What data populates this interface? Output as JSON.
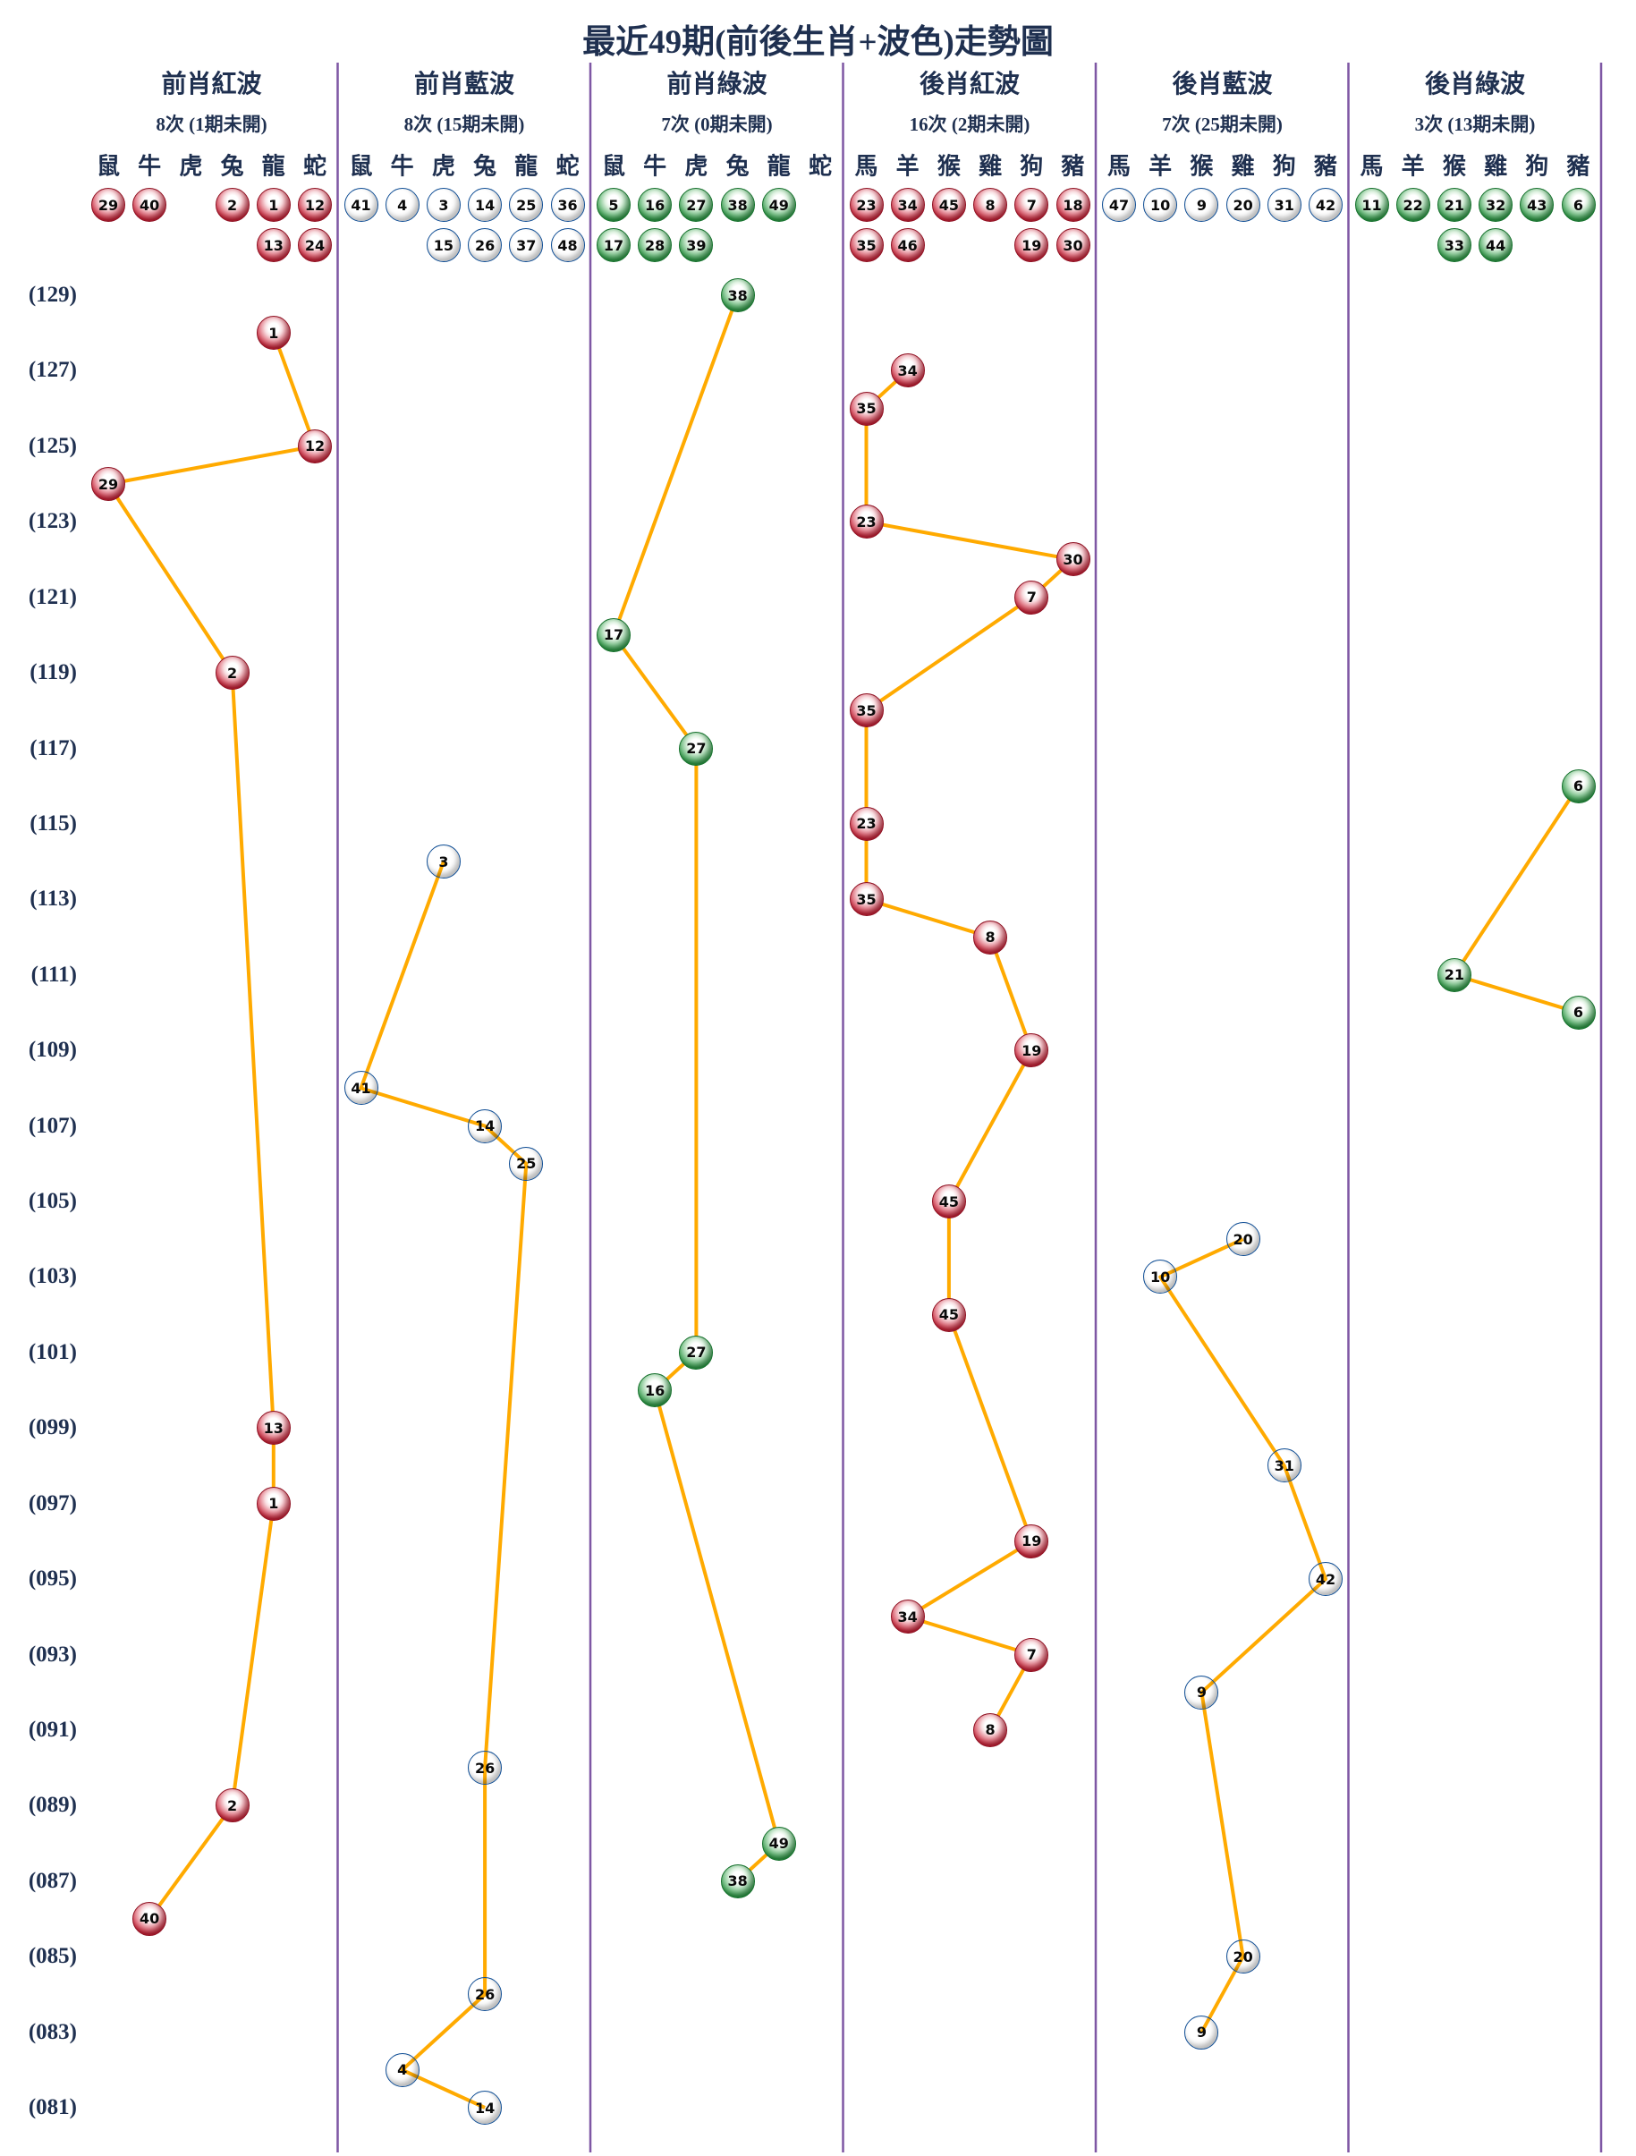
{
  "title": "最近49期(前後生肖+波色)走勢圖",
  "colors": {
    "red_ball": "#cf2339",
    "blue_ball": "#1e72d2",
    "green_ball": "#2f9e48",
    "trend_line": "#ffaa00",
    "column_divider": "#7e57a4",
    "header_text": "#1f3050"
  },
  "chart_data": {
    "type": "line",
    "title": "最近49期(前後生肖+波色)走勢圖",
    "y_axis": {
      "top_period": 129,
      "bottom_period": 81,
      "labels": [
        "(129)",
        "(127)",
        "(125)",
        "(123)",
        "(121)",
        "(119)",
        "(117)",
        "(115)",
        "(113)",
        "(111)",
        "(109)",
        "(107)",
        "(105)",
        "(103)",
        "(101)",
        "(099)",
        "(097)",
        "(095)",
        "(093)",
        "(091)",
        "(089)",
        "(087)",
        "(085)",
        "(083)",
        "(081)"
      ]
    },
    "columns": [
      {
        "title": "前肖紅波",
        "subtitle": "8次 (1期未開)",
        "color": "red",
        "zodiacs": [
          "鼠",
          "牛",
          "虎",
          "兔",
          "龍",
          "蛇"
        ],
        "header_balls": [
          [
            29
          ],
          [
            40
          ],
          [],
          [
            2
          ],
          [
            1,
            13
          ],
          [
            12,
            24
          ]
        ],
        "points": [
          {
            "num": 1,
            "zodiac": "龍",
            "period": 128
          },
          {
            "num": 12,
            "zodiac": "蛇",
            "period": 125
          },
          {
            "num": 29,
            "zodiac": "鼠",
            "period": 124
          },
          {
            "num": 2,
            "zodiac": "兔",
            "period": 119
          },
          {
            "num": 13,
            "zodiac": "龍",
            "period": 99
          },
          {
            "num": 1,
            "zodiac": "龍",
            "period": 97
          },
          {
            "num": 2,
            "zodiac": "兔",
            "period": 89
          },
          {
            "num": 40,
            "zodiac": "牛",
            "period": 86
          }
        ]
      },
      {
        "title": "前肖藍波",
        "subtitle": "8次 (15期未開)",
        "color": "blue",
        "zodiacs": [
          "鼠",
          "牛",
          "虎",
          "兔",
          "龍",
          "蛇"
        ],
        "header_balls": [
          [
            41
          ],
          [
            4
          ],
          [
            3,
            15
          ],
          [
            14,
            26
          ],
          [
            25,
            37
          ],
          [
            36,
            48
          ]
        ],
        "points": [
          {
            "num": 3,
            "zodiac": "虎",
            "period": 114
          },
          {
            "num": 41,
            "zodiac": "鼠",
            "period": 108
          },
          {
            "num": 14,
            "zodiac": "兔",
            "period": 107
          },
          {
            "num": 25,
            "zodiac": "龍",
            "period": 106
          },
          {
            "num": 26,
            "zodiac": "兔",
            "period": 90
          },
          {
            "num": 26,
            "zodiac": "兔",
            "period": 84
          },
          {
            "num": 4,
            "zodiac": "牛",
            "period": 82
          },
          {
            "num": 14,
            "zodiac": "兔",
            "period": 81
          }
        ]
      },
      {
        "title": "前肖綠波",
        "subtitle": "7次 (0期未開)",
        "color": "green",
        "zodiacs": [
          "鼠",
          "牛",
          "虎",
          "兔",
          "龍",
          "蛇"
        ],
        "header_balls": [
          [
            5,
            17
          ],
          [
            16,
            28
          ],
          [
            27,
            39
          ],
          [
            38
          ],
          [
            49
          ],
          []
        ],
        "points": [
          {
            "num": 38,
            "zodiac": "兔",
            "period": 129
          },
          {
            "num": 17,
            "zodiac": "鼠",
            "period": 120
          },
          {
            "num": 27,
            "zodiac": "虎",
            "period": 117
          },
          {
            "num": 27,
            "zodiac": "虎",
            "period": 101
          },
          {
            "num": 16,
            "zodiac": "牛",
            "period": 100
          },
          {
            "num": 49,
            "zodiac": "龍",
            "period": 88
          },
          {
            "num": 38,
            "zodiac": "兔",
            "period": 87
          }
        ]
      },
      {
        "title": "後肖紅波",
        "subtitle": "16次 (2期未開)",
        "color": "red",
        "zodiacs": [
          "馬",
          "羊",
          "猴",
          "雞",
          "狗",
          "豬"
        ],
        "header_balls": [
          [
            23,
            35
          ],
          [
            34,
            46
          ],
          [
            45
          ],
          [
            8
          ],
          [
            7,
            19
          ],
          [
            18,
            30
          ]
        ],
        "points": [
          {
            "num": 34,
            "zodiac": "羊",
            "period": 127
          },
          {
            "num": 35,
            "zodiac": "馬",
            "period": 126
          },
          {
            "num": 23,
            "zodiac": "馬",
            "period": 123
          },
          {
            "num": 30,
            "zodiac": "豬",
            "period": 122
          },
          {
            "num": 7,
            "zodiac": "狗",
            "period": 121
          },
          {
            "num": 35,
            "zodiac": "馬",
            "period": 118
          },
          {
            "num": 23,
            "zodiac": "馬",
            "period": 115
          },
          {
            "num": 35,
            "zodiac": "馬",
            "period": 113
          },
          {
            "num": 8,
            "zodiac": "雞",
            "period": 112
          },
          {
            "num": 19,
            "zodiac": "狗",
            "period": 109
          },
          {
            "num": 45,
            "zodiac": "猴",
            "period": 105
          },
          {
            "num": 45,
            "zodiac": "猴",
            "period": 102
          },
          {
            "num": 19,
            "zodiac": "狗",
            "period": 96
          },
          {
            "num": 34,
            "zodiac": "羊",
            "period": 94
          },
          {
            "num": 7,
            "zodiac": "狗",
            "period": 93
          },
          {
            "num": 8,
            "zodiac": "雞",
            "period": 91
          }
        ]
      },
      {
        "title": "後肖藍波",
        "subtitle": "7次 (25期未開)",
        "color": "blue",
        "zodiacs": [
          "馬",
          "羊",
          "猴",
          "雞",
          "狗",
          "豬"
        ],
        "header_balls": [
          [
            47
          ],
          [
            10
          ],
          [
            9
          ],
          [
            20
          ],
          [
            31
          ],
          [
            42
          ]
        ],
        "points": [
          {
            "num": 20,
            "zodiac": "雞",
            "period": 104
          },
          {
            "num": 10,
            "zodiac": "羊",
            "period": 103
          },
          {
            "num": 31,
            "zodiac": "狗",
            "period": 98
          },
          {
            "num": 42,
            "zodiac": "豬",
            "period": 95
          },
          {
            "num": 9,
            "zodiac": "猴",
            "period": 92
          },
          {
            "num": 20,
            "zodiac": "雞",
            "period": 85
          },
          {
            "num": 9,
            "zodiac": "猴",
            "period": 83
          }
        ]
      },
      {
        "title": "後肖綠波",
        "subtitle": "3次 (13期未開)",
        "color": "green",
        "zodiacs": [
          "馬",
          "羊",
          "猴",
          "雞",
          "狗",
          "豬"
        ],
        "header_balls": [
          [
            11
          ],
          [
            22
          ],
          [
            21,
            33
          ],
          [
            32,
            44
          ],
          [
            43
          ],
          [
            6
          ]
        ],
        "points": [
          {
            "num": 6,
            "zodiac": "豬",
            "period": 116
          },
          {
            "num": 21,
            "zodiac": "猴",
            "period": 111
          },
          {
            "num": 6,
            "zodiac": "豬",
            "period": 110
          }
        ]
      }
    ]
  }
}
